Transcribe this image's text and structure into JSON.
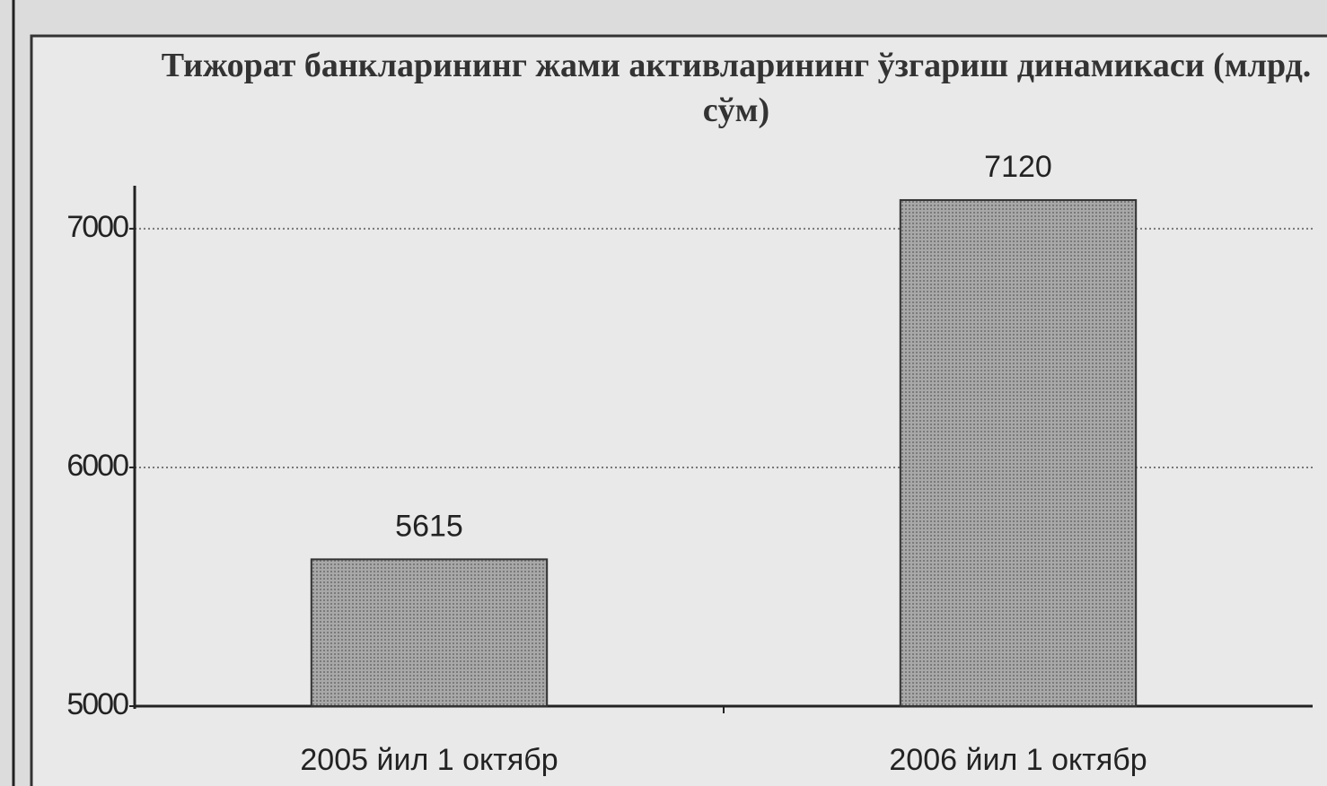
{
  "chart_data": {
    "type": "bar",
    "title": "Тижорат банкларининг жами активларининг ўзгариш динамикаси (млрд. сўм)",
    "categories": [
      "2005 йил 1 октябр",
      "2006 йил 1 октябр"
    ],
    "values": [
      5615,
      7120
    ],
    "color": "#9a9a9a",
    "ylim": [
      5000,
      7180
    ],
    "yticks": [
      5000,
      6000,
      7000
    ],
    "grid": true
  }
}
